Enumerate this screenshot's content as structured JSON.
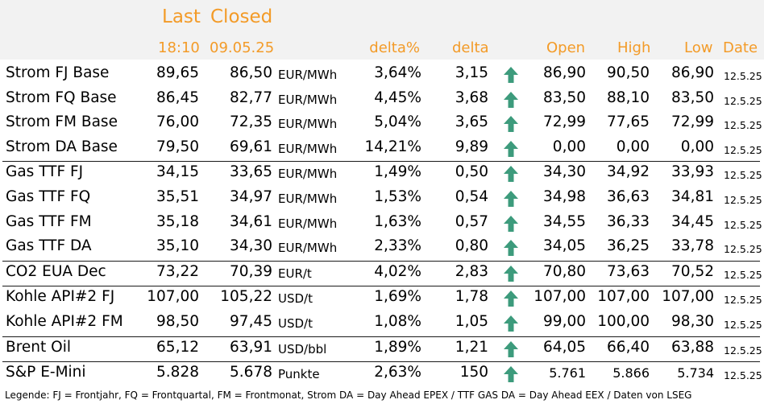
{
  "header": {
    "last_title": "Last",
    "closed_title": "Closed",
    "last_time": "18:10",
    "closed_date": "09.05.25",
    "delta_pct": "delta%",
    "delta": "delta",
    "open": "Open",
    "high": "High",
    "low": "Low",
    "date": "Date"
  },
  "colors": {
    "accent": "#f39b28",
    "arrow": "#3d9b7c",
    "header_bg": "#f2f2f2"
  },
  "rows": [
    {
      "name": "Strom FJ Base",
      "last": "89,65",
      "closed": "86,50",
      "unit": "EUR/MWh",
      "delta_pct": "3,64%",
      "delta": "3,15",
      "arrow": "up-arrow-icon",
      "open": "86,90",
      "high": "90,50",
      "low": "86,90",
      "date": "12.5.25"
    },
    {
      "name": "Strom FQ Base",
      "last": "86,45",
      "closed": "82,77",
      "unit": "EUR/MWh",
      "delta_pct": "4,45%",
      "delta": "3,68",
      "arrow": "up-arrow-icon",
      "open": "83,50",
      "high": "88,10",
      "low": "83,50",
      "date": "12.5.25"
    },
    {
      "name": "Strom FM Base",
      "last": "76,00",
      "closed": "72,35",
      "unit": "EUR/MWh",
      "delta_pct": "5,04%",
      "delta": "3,65",
      "arrow": "up-arrow-icon",
      "open": "72,99",
      "high": "77,65",
      "low": "72,99",
      "date": "12.5.25"
    },
    {
      "name": "Strom DA Base",
      "last": "79,50",
      "closed": "69,61",
      "unit": "EUR/MWh",
      "delta_pct": "14,21%",
      "delta": "9,89",
      "arrow": "up-arrow-icon",
      "open": "0,00",
      "high": "0,00",
      "low": "0,00",
      "date": "12.5.25",
      "sep": true
    },
    {
      "name": "Gas TTF FJ",
      "last": "34,15",
      "closed": "33,65",
      "unit": "EUR/MWh",
      "delta_pct": "1,49%",
      "delta": "0,50",
      "arrow": "up-arrow-icon",
      "open": "34,30",
      "high": "34,92",
      "low": "33,93",
      "date": "12.5.25"
    },
    {
      "name": "Gas TTF FQ",
      "last": "35,51",
      "closed": "34,97",
      "unit": "EUR/MWh",
      "delta_pct": "1,53%",
      "delta": "0,54",
      "arrow": "up-arrow-icon",
      "open": "34,98",
      "high": "36,63",
      "low": "34,81",
      "date": "12.5.25"
    },
    {
      "name": "Gas TTF FM",
      "last": "35,18",
      "closed": "34,61",
      "unit": "EUR/MWh",
      "delta_pct": "1,63%",
      "delta": "0,57",
      "arrow": "up-arrow-icon",
      "open": "34,55",
      "high": "36,33",
      "low": "34,45",
      "date": "12.5.25"
    },
    {
      "name": "Gas TTF DA",
      "last": "35,10",
      "closed": "34,30",
      "unit": "EUR/MWh",
      "delta_pct": "2,33%",
      "delta": "0,80",
      "arrow": "up-arrow-icon",
      "open": "34,05",
      "high": "36,25",
      "low": "33,78",
      "date": "12.5.25",
      "sep": true
    },
    {
      "name": "CO2 EUA Dec",
      "last": "73,22",
      "closed": "70,39",
      "unit": "EUR/t",
      "delta_pct": "4,02%",
      "delta": "2,83",
      "arrow": "up-arrow-icon",
      "open": "70,80",
      "high": "73,63",
      "low": "70,52",
      "date": "12.5.25",
      "sep": true
    },
    {
      "name": "Kohle API#2 FJ",
      "last": "107,00",
      "closed": "105,22",
      "unit": "USD/t",
      "delta_pct": "1,69%",
      "delta": "1,78",
      "arrow": "up-arrow-icon",
      "open": "107,00",
      "high": "107,00",
      "low": "107,00",
      "date": "12.5.25"
    },
    {
      "name": "Kohle API#2 FM",
      "last": "98,50",
      "closed": "97,45",
      "unit": "USD/t",
      "delta_pct": "1,08%",
      "delta": "1,05",
      "arrow": "up-arrow-icon",
      "open": "99,00",
      "high": "100,00",
      "low": "98,30",
      "date": "12.5.25",
      "sep": true
    },
    {
      "name": "Brent Oil",
      "last": "65,12",
      "closed": "63,91",
      "unit": "USD/bbl",
      "delta_pct": "1,89%",
      "delta": "1,21",
      "arrow": "up-arrow-icon",
      "open": "64,05",
      "high": "66,40",
      "low": "63,88",
      "date": "12.5.25",
      "sep": true
    },
    {
      "name": "S&P E-Mini",
      "last": "5.828",
      "closed": "5.678",
      "unit": "Punkte",
      "delta_pct": "2,63%",
      "delta": "150",
      "arrow": "up-arrow-icon",
      "open": "5.761",
      "high": "5.866",
      "low": "5.734",
      "date": "12.5.25",
      "small_ohl": true
    }
  ],
  "legend": "Legende: FJ = Frontjahr, FQ = Frontquartal, FM = Frontmonat, Strom DA = Day Ahead EPEX / TTF GAS DA = Day Ahead EEX / Daten von LSEG"
}
